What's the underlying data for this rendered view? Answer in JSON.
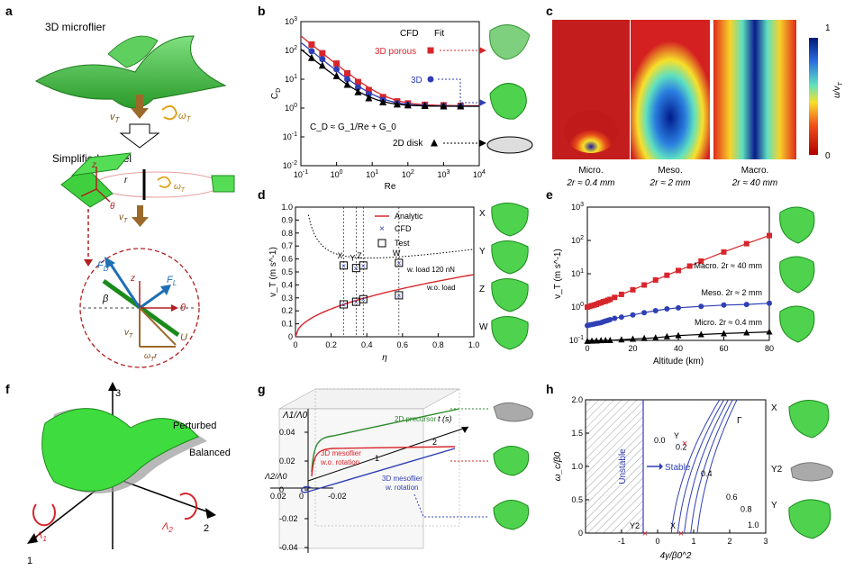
{
  "panel_letters": [
    "a",
    "b",
    "c",
    "d",
    "e",
    "f",
    "g",
    "h"
  ],
  "panel_a": {
    "title_top": "3D microflier",
    "vT": "v",
    "vT_sub": "T",
    "omegaT": "ω",
    "omegaT_sub": "T",
    "simplified_title": "Simplified model",
    "axis_z": "z",
    "axis_r": "r",
    "axis_theta": "θ",
    "FD": "F",
    "FD_sub": "D",
    "FL": "F",
    "FL_sub": "L",
    "beta": "β",
    "U": "U",
    "omegaT_r": "ω",
    "omegaT_r_sub": "T",
    "omegaT_r_suffix": "r"
  },
  "panel_c": {
    "cbar_top": "1",
    "cbar_bottom": "0",
    "cbar_label": "u/v",
    "cbar_label_sub": "T",
    "maps": [
      {
        "name": "Micro.",
        "size": "2r ≈ 0.4 mm"
      },
      {
        "name": "Meso.",
        "size": "2r ≈ 2 mm"
      },
      {
        "name": "Macro.",
        "size": "2r ≈ 40 mm"
      }
    ]
  },
  "panel_d_labels": [
    "X",
    "Y",
    "Z",
    "W"
  ],
  "panel_e_labels": [],
  "panel_f": {
    "perturbed": "Perturbed",
    "balanced": "Balanced",
    "axis1": "1",
    "axis2": "2",
    "axis3": "3",
    "lambda1": "Λ",
    "lambda1_sub": "1",
    "lambda2": "Λ",
    "lambda2_sub": "2"
  },
  "panel_h_labels": {
    "X": "X",
    "Y2": "Y2",
    "Y": "Y"
  },
  "chart_data": [
    {
      "panel": "b",
      "type": "line",
      "xlabel": "Re",
      "ylabel": "C_D",
      "xscale": "log",
      "yscale": "log",
      "xlim": [
        0.1,
        10000
      ],
      "ylim": [
        0.01,
        1000
      ],
      "xticks": [
        "10^-1",
        "10^0",
        "10^1",
        "10^2",
        "10^3",
        "10^4"
      ],
      "yticks": [
        "10^-2",
        "10^-1",
        "10^0",
        "10^1",
        "10^2",
        "10^3"
      ],
      "legend_header": [
        "CFD",
        "Fit"
      ],
      "equation": "C_D ≈ G_1/Re + G_0",
      "series": [
        {
          "name": "3D porous",
          "marker": "square",
          "color": "#d7262b",
          "x": [
            0.2,
            0.4,
            1,
            2,
            4,
            8,
            20,
            50,
            100,
            300,
            1000,
            3000
          ],
          "y": [
            160,
            80,
            35,
            16,
            8,
            4.2,
            2.4,
            1.7,
            1.45,
            1.3,
            1.25,
            1.2
          ]
        },
        {
          "name": "3D",
          "marker": "circle",
          "color": "#2f3fb4",
          "x": [
            0.2,
            0.4,
            1,
            2,
            4,
            8,
            20,
            50,
            100,
            300,
            1000,
            3000
          ],
          "y": [
            95,
            50,
            22,
            10,
            5.2,
            3.0,
            1.9,
            1.45,
            1.3,
            1.2,
            1.18,
            1.15
          ]
        },
        {
          "name": "2D disk",
          "marker": "triangle",
          "color": "#000000",
          "x": [
            0.2,
            0.4,
            1,
            2,
            4,
            8,
            20,
            50,
            100,
            300,
            1000,
            3000
          ],
          "y": [
            55,
            30,
            13,
            6.5,
            3.6,
            2.2,
            1.6,
            1.35,
            1.25,
            1.2,
            1.15,
            1.15
          ]
        }
      ]
    },
    {
      "panel": "d",
      "type": "line",
      "xlabel": "η",
      "ylabel": "v_T (m s^-1)",
      "xlim": [
        0,
        1
      ],
      "ylim": [
        0,
        1
      ],
      "xticks": [
        "0",
        "0.2",
        "0.4",
        "0.6",
        "0.8",
        "1.0"
      ],
      "yticks": [
        "0",
        "0.1",
        "0.2",
        "0.3",
        "0.4",
        "0.5",
        "0.6",
        "0.7",
        "0.8",
        "0.9",
        "1.0"
      ],
      "legend": [
        "Analytic",
        "CFD",
        "Test"
      ],
      "curve_labels": [
        "w. load 120 nN",
        "w.o. load"
      ],
      "points_labels": [
        "X",
        "Y",
        "Z",
        "W"
      ],
      "points_eta": [
        0.27,
        0.34,
        0.38,
        0.58
      ],
      "wo_load": [
        0.25,
        0.27,
        0.29,
        0.32
      ],
      "w_load": [
        0.55,
        0.53,
        0.55,
        0.57
      ]
    },
    {
      "panel": "e",
      "type": "line",
      "xlabel": "Altitude (km)",
      "ylabel": "v_T (m s^-1)",
      "yscale": "log",
      "xlim": [
        0,
        80
      ],
      "ylim": [
        0.1,
        1000
      ],
      "xticks": [
        "0",
        "20",
        "40",
        "60",
        "80"
      ],
      "yticks": [
        "10^-1",
        "10^0",
        "10^1",
        "10^2",
        "10^3"
      ],
      "series": [
        {
          "name": "Macro. 2r ≈ 40 mm",
          "marker": "square",
          "color": "#d7262b",
          "x": [
            0,
            1,
            2,
            3,
            4,
            5,
            6,
            7,
            8,
            9,
            10,
            12,
            15,
            20,
            25,
            30,
            35,
            40,
            45,
            50,
            60,
            70,
            80
          ],
          "y": [
            1.0,
            1.05,
            1.1,
            1.15,
            1.2,
            1.3,
            1.35,
            1.45,
            1.5,
            1.6,
            1.7,
            1.95,
            2.4,
            3.3,
            4.6,
            6.5,
            9,
            12.5,
            17,
            24,
            45,
            80,
            140
          ]
        },
        {
          "name": "Meso. 2r ≈ 2 mm",
          "marker": "circle",
          "color": "#2f3fb4",
          "x": [
            0,
            1,
            2,
            3,
            4,
            5,
            6,
            7,
            8,
            9,
            10,
            12,
            15,
            20,
            25,
            30,
            35,
            40,
            50,
            60,
            70,
            80
          ],
          "y": [
            0.28,
            0.29,
            0.3,
            0.31,
            0.32,
            0.33,
            0.34,
            0.36,
            0.38,
            0.4,
            0.42,
            0.46,
            0.5,
            0.58,
            0.68,
            0.78,
            0.88,
            0.95,
            1.05,
            1.15,
            1.2,
            1.3
          ]
        },
        {
          "name": "Micro. 2r ≈ 0.4 mm",
          "marker": "triangle",
          "color": "#000000",
          "x": [
            0,
            2,
            4,
            6,
            8,
            10,
            15,
            20,
            25,
            30,
            35,
            40,
            50,
            60,
            70,
            80
          ],
          "y": [
            0.095,
            0.096,
            0.097,
            0.099,
            0.1,
            0.1,
            0.105,
            0.11,
            0.115,
            0.12,
            0.13,
            0.14,
            0.15,
            0.16,
            0.17,
            0.18
          ]
        }
      ]
    },
    {
      "panel": "g",
      "type": "line",
      "xlabel": "t (s)",
      "ylabel": "Λ1/Λ0",
      "zlabel": "Λ2/Λ0",
      "yticks": [
        "0.04",
        "0.02",
        "0",
        "-0.02",
        "-0.04"
      ],
      "xticks": [
        "1",
        "2"
      ],
      "zticks": [
        "0.02",
        "0",
        "-0.02"
      ],
      "series": [
        {
          "name": "2D precursor",
          "color": "#2e8b2e"
        },
        {
          "name": "3D mesoflier w.o. rotation",
          "color": "#d7262b"
        },
        {
          "name": "3D mesoflier w. rotation",
          "color": "#2f3fb4"
        }
      ]
    },
    {
      "panel": "h",
      "type": "line",
      "xlabel": "4γ/β0^2",
      "ylabel": "ω_c/β0",
      "xlim": [
        -2,
        3
      ],
      "ylim": [
        0,
        2
      ],
      "xticks": [
        "-1",
        "0",
        "1",
        "2",
        "3"
      ],
      "yticks": [
        "0",
        "0.5",
        "1.0",
        "1.5",
        "2.0"
      ],
      "region_labels": [
        "Unstable",
        "Stable"
      ],
      "gamma_label": "Γ",
      "contour_levels": [
        "0.0",
        "0.2",
        "0.4",
        "0.6",
        "0.8",
        "1.0"
      ],
      "points": [
        {
          "label": "Y",
          "x": 0.75,
          "y": 1.35
        },
        {
          "label": "Y2",
          "x": -0.35,
          "y": 0.0
        },
        {
          "label": "X",
          "x": 0.65,
          "y": 0.0
        }
      ]
    }
  ]
}
